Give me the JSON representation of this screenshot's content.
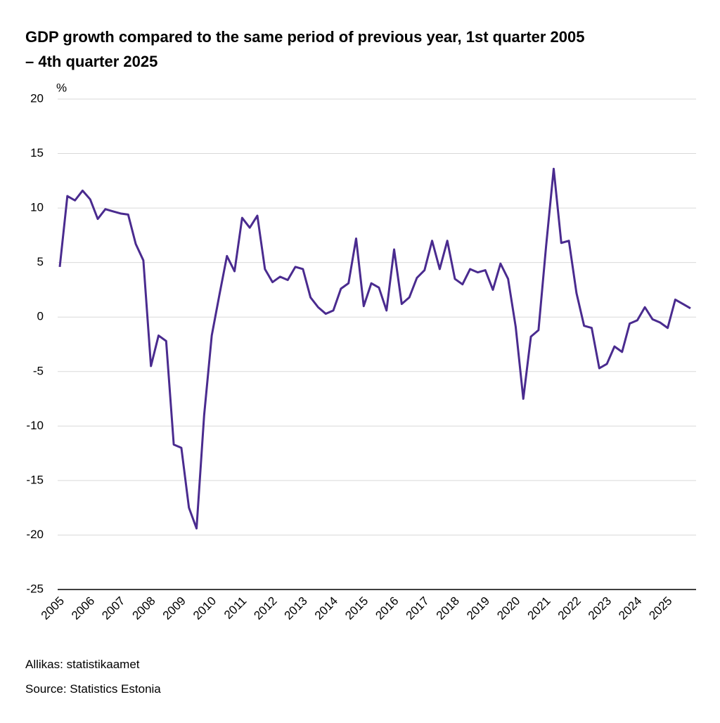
{
  "chart_data": {
    "type": "line",
    "title": "GDP growth compared to the same period of previous year, 1st quarter 2005",
    "subtitle": "– 4th quarter 2025",
    "y_label": "%",
    "source_local": "Allikas: statistikaamet",
    "source": "Source: Statistics Estonia",
    "categories": [
      "2005",
      null,
      null,
      null,
      "2006",
      null,
      null,
      null,
      "2007",
      null,
      null,
      null,
      "2008",
      null,
      null,
      null,
      "2009",
      null,
      null,
      null,
      "2010",
      null,
      null,
      null,
      "2011",
      null,
      null,
      null,
      "2012",
      null,
      null,
      null,
      "2013",
      null,
      null,
      null,
      "2014",
      null,
      null,
      null,
      "2015",
      null,
      null,
      null,
      "2016",
      null,
      null,
      null,
      "2017",
      null,
      null,
      null,
      "2018",
      null,
      null,
      null,
      "2019",
      null,
      null,
      null,
      "2020",
      null,
      null,
      null,
      "2021",
      null,
      null,
      null,
      "2022",
      null,
      null,
      null,
      "2023",
      null,
      null,
      null,
      "2024",
      null,
      null,
      null,
      "2025",
      null,
      null,
      null
    ],
    "series": [
      {
        "color": "#4a2b8f",
        "values": [
          4.6,
          11.1,
          10.7,
          11.6,
          10.8,
          9.0,
          9.9,
          9.7,
          9.5,
          9.4,
          6.7,
          5.2,
          -4.5,
          -1.7,
          -2.2,
          -11.7,
          -12.0,
          -17.5,
          -19.4,
          -9.0,
          -1.7,
          2.0,
          5.6,
          4.2,
          9.1,
          8.2,
          9.3,
          4.4,
          3.2,
          3.7,
          3.4,
          4.6,
          4.4,
          1.8,
          0.9,
          0.3,
          0.6,
          2.6,
          3.1,
          7.2,
          1.0,
          3.1,
          2.7,
          0.6,
          6.2,
          1.2,
          1.8,
          3.6,
          4.3,
          7.0,
          4.4,
          7.0,
          3.5,
          3.0,
          4.4,
          4.1,
          4.3,
          2.5,
          4.9,
          3.5,
          -0.9,
          -7.5,
          -1.8,
          -1.2,
          6.5,
          13.6,
          6.8,
          7.0,
          2.2,
          -0.8,
          -1.0,
          -4.7,
          -4.3,
          -2.7,
          -3.2,
          -0.6,
          -0.3,
          0.9,
          -0.2,
          -0.5,
          -1.0,
          1.6,
          1.2,
          0.8
        ]
      }
    ],
    "ylim": [
      -25,
      20
    ],
    "yticks": [
      -25,
      -20,
      -15,
      -10,
      -5,
      0,
      5,
      10,
      15,
      20
    ],
    "grid": true
  }
}
